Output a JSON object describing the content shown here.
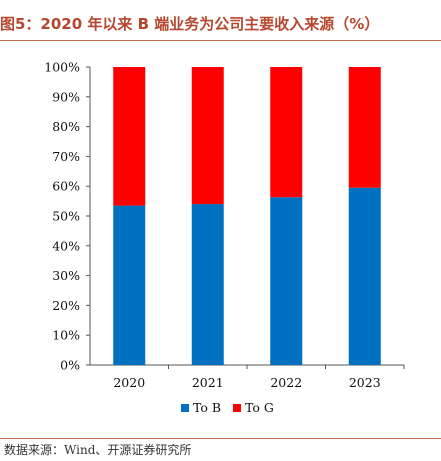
{
  "title": "图5：2020 年以来 B 端业务为公司主要收入来源（%）",
  "source": "数据来源：Wind、开源证券研究所",
  "colors": {
    "title": "#b5472e",
    "rule": "#c66a4f",
    "to_b": "#0070c0",
    "to_g": "#ff0000"
  },
  "chart_data": {
    "type": "bar",
    "stacked": true,
    "categories": [
      "2020",
      "2021",
      "2022",
      "2023"
    ],
    "series": [
      {
        "name": "To B",
        "values": [
          53.5,
          54.0,
          56.3,
          59.5
        ],
        "color": "#0070c0"
      },
      {
        "name": "To G",
        "values": [
          46.5,
          46.0,
          43.7,
          40.5
        ],
        "color": "#ff0000"
      }
    ],
    "ylim": [
      0,
      100
    ],
    "yticks": [
      "0%",
      "10%",
      "20%",
      "30%",
      "40%",
      "50%",
      "60%",
      "70%",
      "80%",
      "90%",
      "100%"
    ],
    "grid": false,
    "legend_position": "bottom"
  }
}
